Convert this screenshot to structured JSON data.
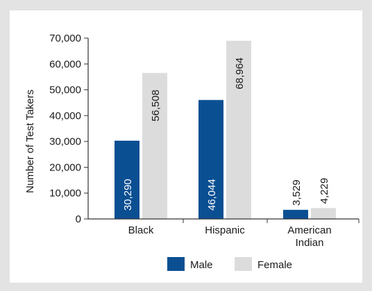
{
  "colors": {
    "background": "#e3e3e4",
    "panel": "#ffffff",
    "male": "#0b4f93",
    "female": "#dcdcdc",
    "axis": "#333333"
  },
  "chart_data": {
    "type": "bar",
    "ylabel": "Number of Test Takers",
    "ylim": [
      0,
      70000
    ],
    "yticks": [
      "0",
      "10,000",
      "20,000",
      "30,000",
      "40,000",
      "50,000",
      "60,000",
      "70,000"
    ],
    "categories": [
      [
        "Black"
      ],
      [
        "Hispanic"
      ],
      [
        "American",
        "Indian"
      ]
    ],
    "series": [
      {
        "name": "Male",
        "color": "#0b4f93",
        "values": [
          30290,
          46044,
          3529
        ],
        "labels": [
          "30,290",
          "46,044",
          "3,529"
        ]
      },
      {
        "name": "Female",
        "color": "#dcdcdc",
        "values": [
          56508,
          68964,
          4229
        ],
        "labels": [
          "56,508",
          "68,964",
          "4,229"
        ]
      }
    ],
    "legend": "bottom-center"
  }
}
